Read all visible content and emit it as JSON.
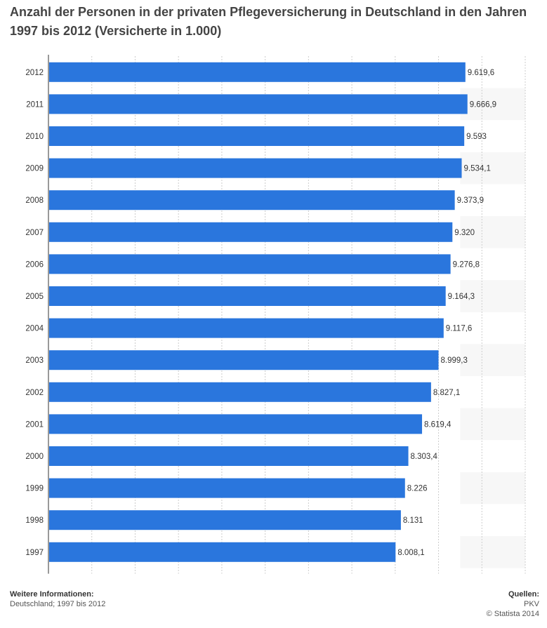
{
  "title": "Anzahl der Personen in der privaten Pflegeversicherung in Deutschland in den Jahren 1997 bis 2012 (Versicherte in 1.000)",
  "colors": {
    "bar": "#2a76dd",
    "band": "#f7f7f7",
    "grid": "#cccccc",
    "axis": "#333333"
  },
  "chart_data": {
    "type": "bar",
    "orientation": "horizontal",
    "title": "Anzahl der Personen in der privaten Pflegeversicherung in Deutschland in den Jahren 1997 bis 2012 (Versicherte in 1.000)",
    "categories": [
      "2012",
      "2011",
      "2010",
      "2009",
      "2008",
      "2007",
      "2006",
      "2005",
      "2004",
      "2003",
      "2002",
      "2001",
      "2000",
      "1999",
      "1998",
      "1997"
    ],
    "values": [
      9619.6,
      9666.9,
      9593,
      9534.1,
      9373.9,
      9320,
      9276.8,
      9164.3,
      9117.6,
      8999.3,
      8827.1,
      8619.4,
      8303.4,
      8226,
      8131,
      8008.1
    ],
    "value_labels": [
      "9.619,6",
      "9.666,9",
      "9.593",
      "9.534,1",
      "9.373,9",
      "9.320",
      "9.276,8",
      "9.164,3",
      "9.117,6",
      "8.999,3",
      "8.827,1",
      "8.619,4",
      "8.303,4",
      "8.226",
      "8.131",
      "8.008,1"
    ],
    "xlim": [
      0,
      11000
    ],
    "grid": true,
    "legend": "none"
  },
  "footer": {
    "info_heading": "Weitere Informationen:",
    "info_text": "Deutschland; 1997 bis 2012",
    "sources_heading": "Quellen:",
    "source": "PKV",
    "copyright": "© Statista 2014"
  }
}
